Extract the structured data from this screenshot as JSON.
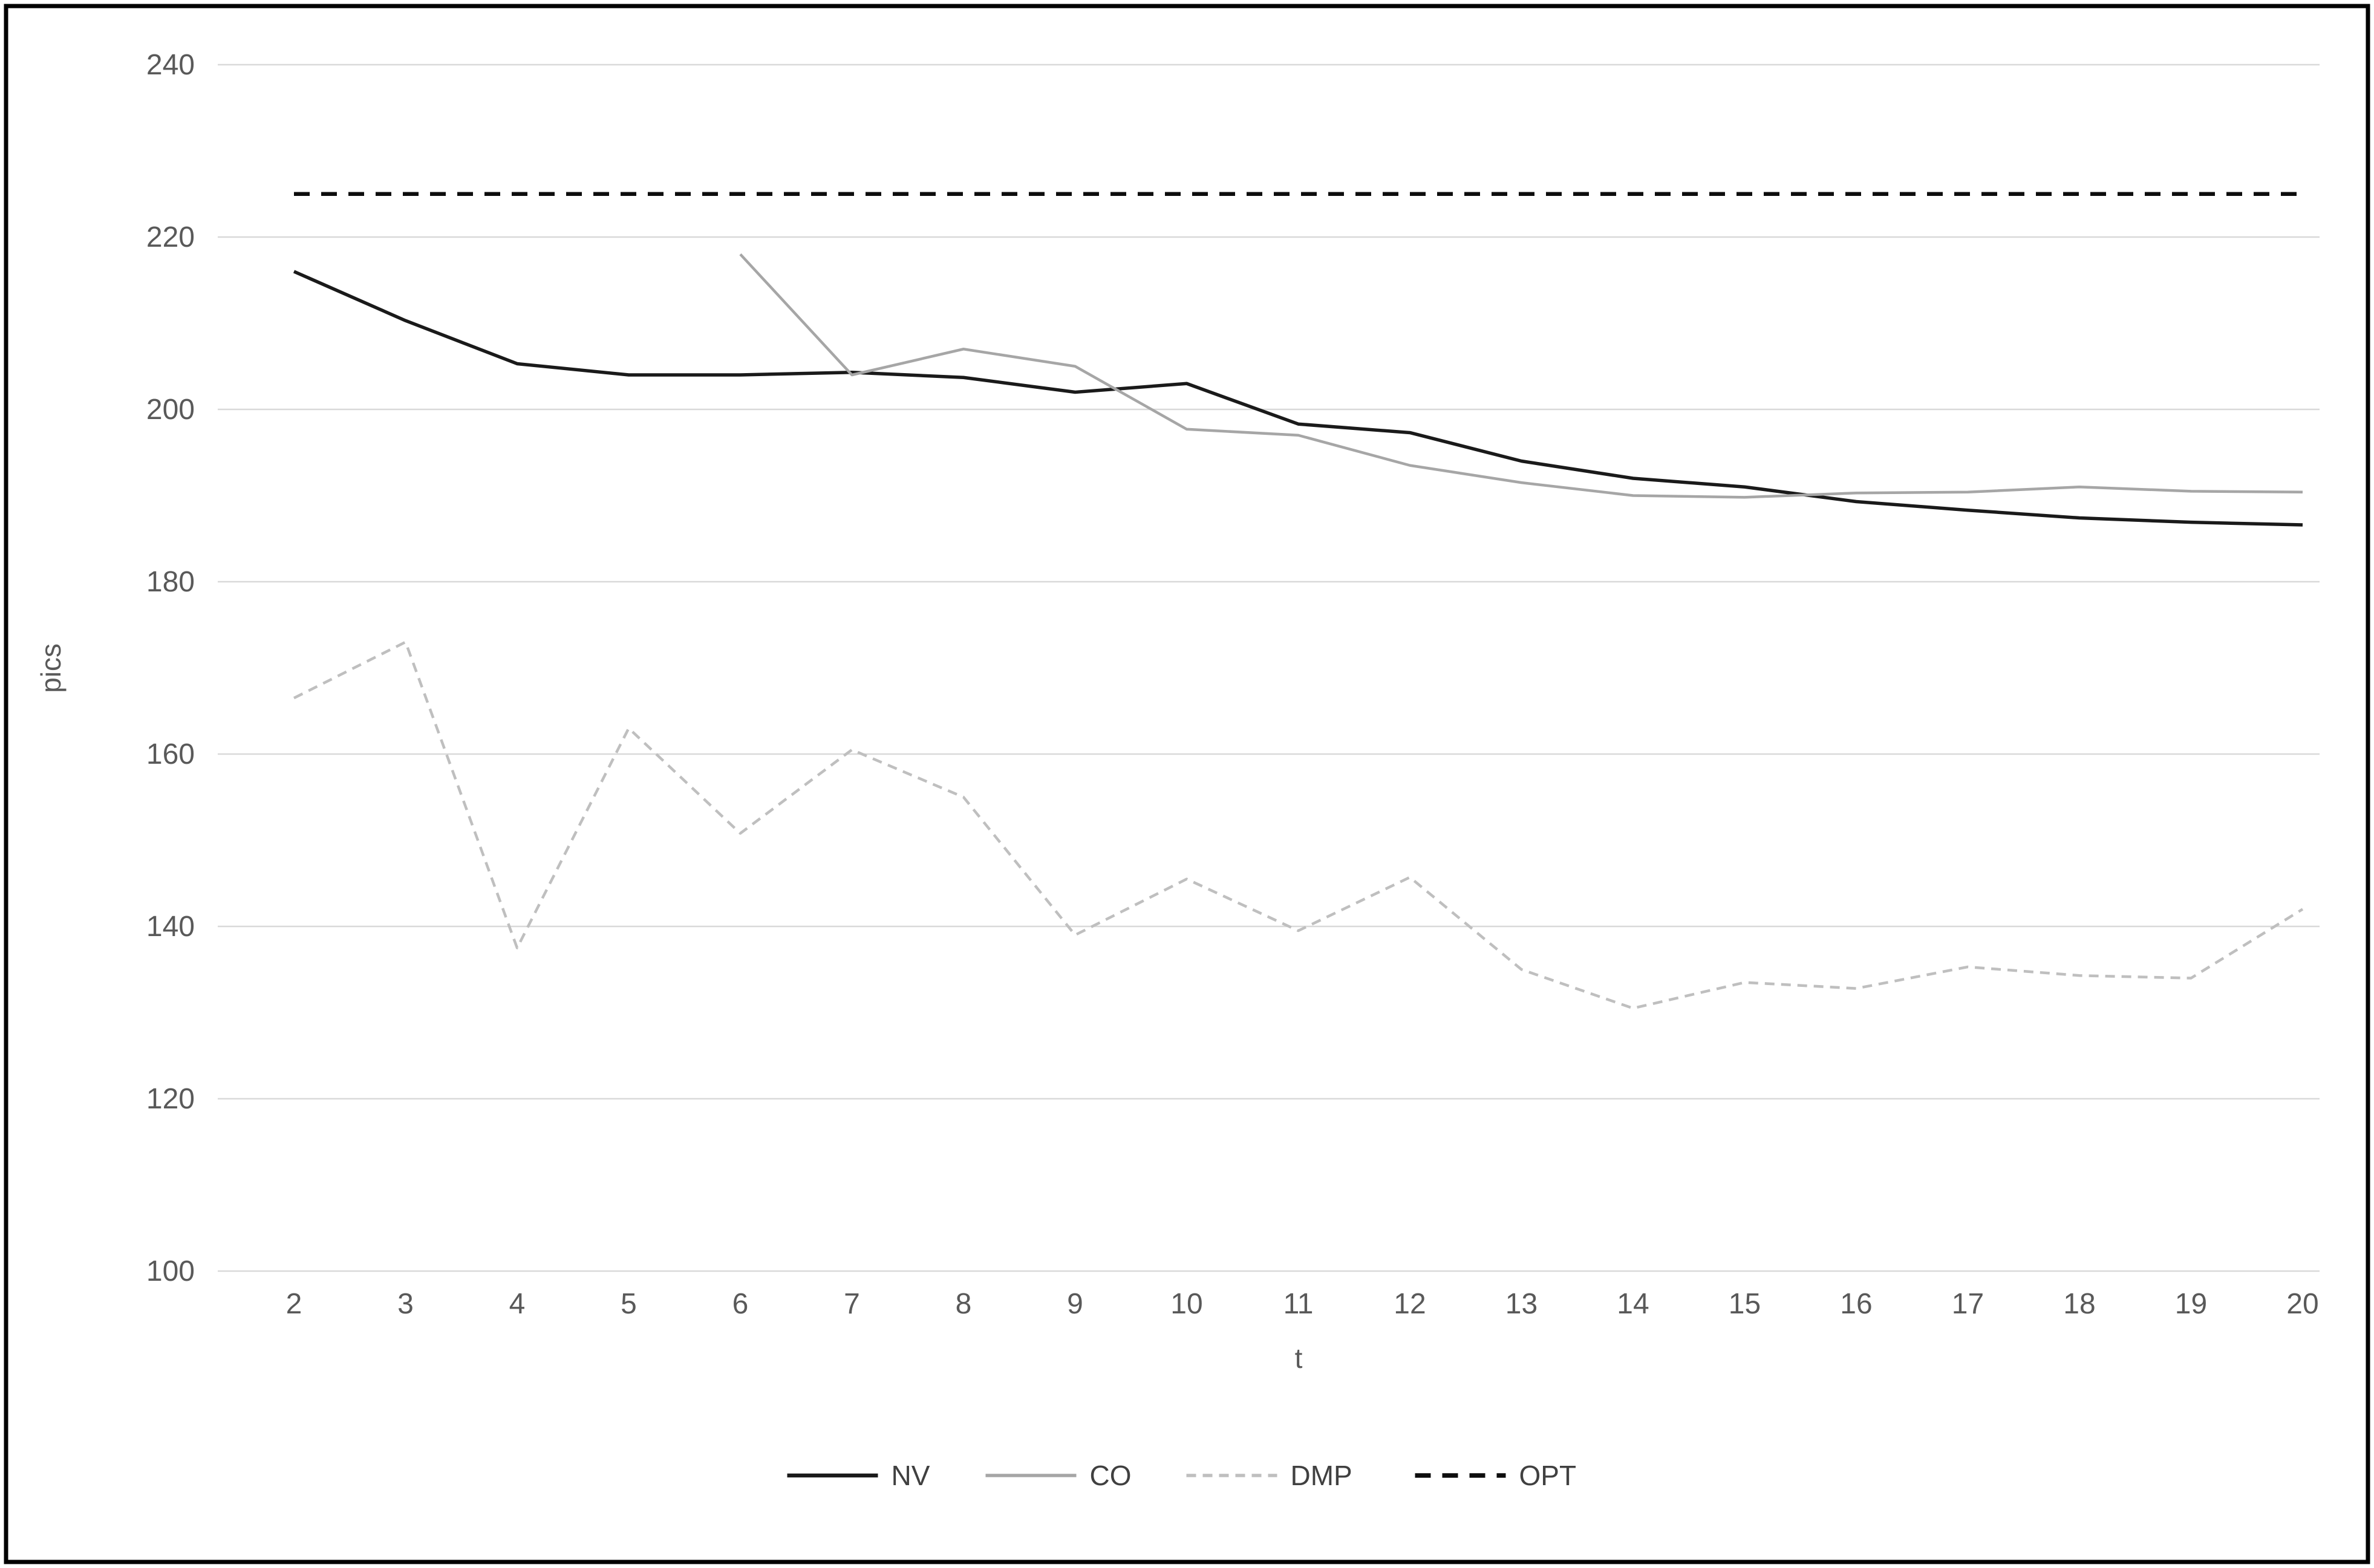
{
  "chart_data": {
    "type": "line",
    "title": "",
    "xlabel": "t",
    "ylabel": "pics",
    "x_ticks": [
      2,
      3,
      4,
      5,
      6,
      7,
      8,
      9,
      10,
      11,
      12,
      13,
      14,
      15,
      16,
      17,
      18,
      19,
      20
    ],
    "xlim": [
      2,
      20
    ],
    "ylim": [
      100,
      240
    ],
    "y_ticks": [
      100,
      120,
      140,
      160,
      180,
      200,
      220,
      240
    ],
    "grid": true,
    "legend_position": "bottom-center",
    "colors": {
      "grid_line": "#d9d9d9",
      "tick_label": "#595959",
      "axis_title": "#595959",
      "legend_text": "#404040",
      "border": "#000000",
      "background": "#ffffff"
    },
    "series": [
      {
        "name": "NV",
        "style": "solid",
        "color": "#1a1a1a",
        "stroke_width": 5.5,
        "x": [
          2,
          3,
          4,
          5,
          6,
          7,
          8,
          9,
          10,
          11,
          12,
          13,
          14,
          15,
          16,
          17,
          18,
          19,
          20
        ],
        "values": [
          216,
          210.3,
          205.3,
          204,
          204,
          204.3,
          203.7,
          202,
          203,
          198.3,
          197.3,
          194,
          192,
          191,
          189.3,
          188.3,
          187.4,
          186.9,
          186.6
        ]
      },
      {
        "name": "CO",
        "style": "solid",
        "color": "#a6a6a6",
        "stroke_width": 4.5,
        "x": [
          6,
          7,
          8,
          9,
          10,
          11,
          12,
          13,
          14,
          15,
          16,
          17,
          18,
          19,
          20
        ],
        "values": [
          218,
          204,
          207,
          205,
          197.7,
          197,
          193.5,
          191.5,
          190,
          189.8,
          190.3,
          190.4,
          191,
          190.5,
          190.4
        ]
      },
      {
        "name": "DMP",
        "style": "dashed",
        "color": "#bfbfbf",
        "stroke_width": 4.5,
        "dash": [
          16,
          11
        ],
        "x": [
          2,
          3,
          4,
          5,
          6,
          7,
          8,
          9,
          10,
          11,
          12,
          13,
          14,
          15,
          16,
          17,
          18,
          19,
          20
        ],
        "values": [
          166.5,
          173,
          137.5,
          163,
          150.8,
          160.5,
          155,
          139,
          145.5,
          139.5,
          145.7,
          135,
          130.5,
          133.5,
          132.8,
          135.3,
          134.3,
          134,
          142
        ]
      },
      {
        "name": "OPT",
        "style": "dashed",
        "color": "#0d0d0d",
        "stroke_width": 6.5,
        "dash": [
          26,
          19
        ],
        "x": [
          2,
          3,
          4,
          5,
          6,
          7,
          8,
          9,
          10,
          11,
          12,
          13,
          14,
          15,
          16,
          17,
          18,
          19,
          20
        ],
        "values": [
          225,
          225,
          225,
          225,
          225,
          225,
          225,
          225,
          225,
          225,
          225,
          225,
          225,
          225,
          225,
          225,
          225,
          225,
          225
        ]
      }
    ]
  }
}
